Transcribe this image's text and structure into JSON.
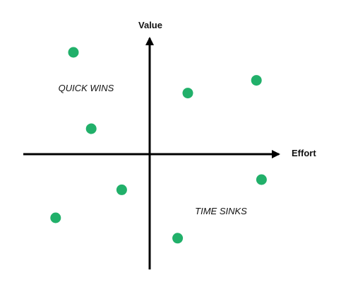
{
  "chart_data": {
    "type": "scatter",
    "title": "",
    "xlabel": "Effort",
    "ylabel": "Value",
    "xlim": [
      -5,
      5
    ],
    "ylim": [
      -5,
      5
    ],
    "grid": false,
    "legend": "none",
    "marker_color": "#21b06a",
    "axis_color": "#000000",
    "quadrant_labels": [
      {
        "text": "QUICK WINS",
        "quadrant": "top-left"
      },
      {
        "text": "TIME SINKS",
        "quadrant": "bottom-right"
      }
    ],
    "series": [
      {
        "points": [
          {
            "x": -3.0,
            "y": 4.0
          },
          {
            "x": -2.3,
            "y": 1.0
          },
          {
            "x": 1.5,
            "y": 2.4
          },
          {
            "x": 4.2,
            "y": 2.9
          },
          {
            "x": -1.1,
            "y": -1.4
          },
          {
            "x": -3.7,
            "y": -2.5
          },
          {
            "x": 1.1,
            "y": -3.3
          },
          {
            "x": 4.4,
            "y": -1.0
          }
        ]
      }
    ]
  }
}
